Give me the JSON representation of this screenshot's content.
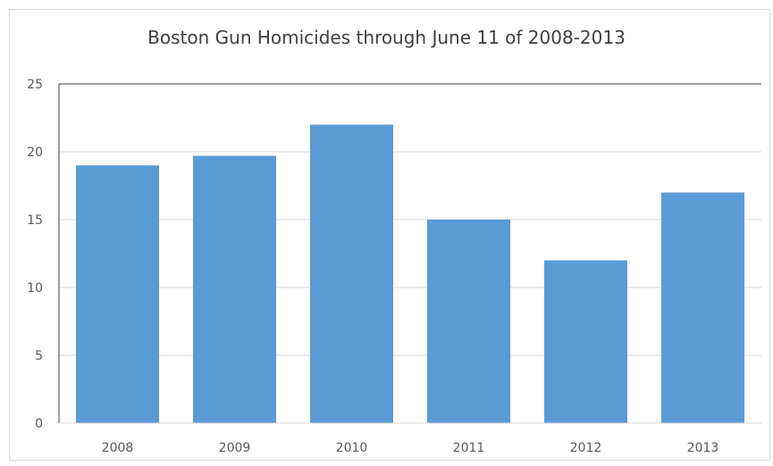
{
  "chart_data": {
    "type": "bar",
    "title": "Boston Gun Homicides through June 11 of 2008-2013",
    "categories": [
      "2008",
      "2009",
      "2010",
      "2011",
      "2012",
      "2013"
    ],
    "values": [
      19,
      19.7,
      22,
      15,
      12,
      17
    ],
    "ylim": [
      0,
      25
    ],
    "yticks": [
      0,
      5,
      10,
      15,
      20,
      25
    ],
    "grid": true,
    "bar_color": "#5b9bd5",
    "grid_color": "#d9d9d9",
    "axis_color": "#404040"
  }
}
